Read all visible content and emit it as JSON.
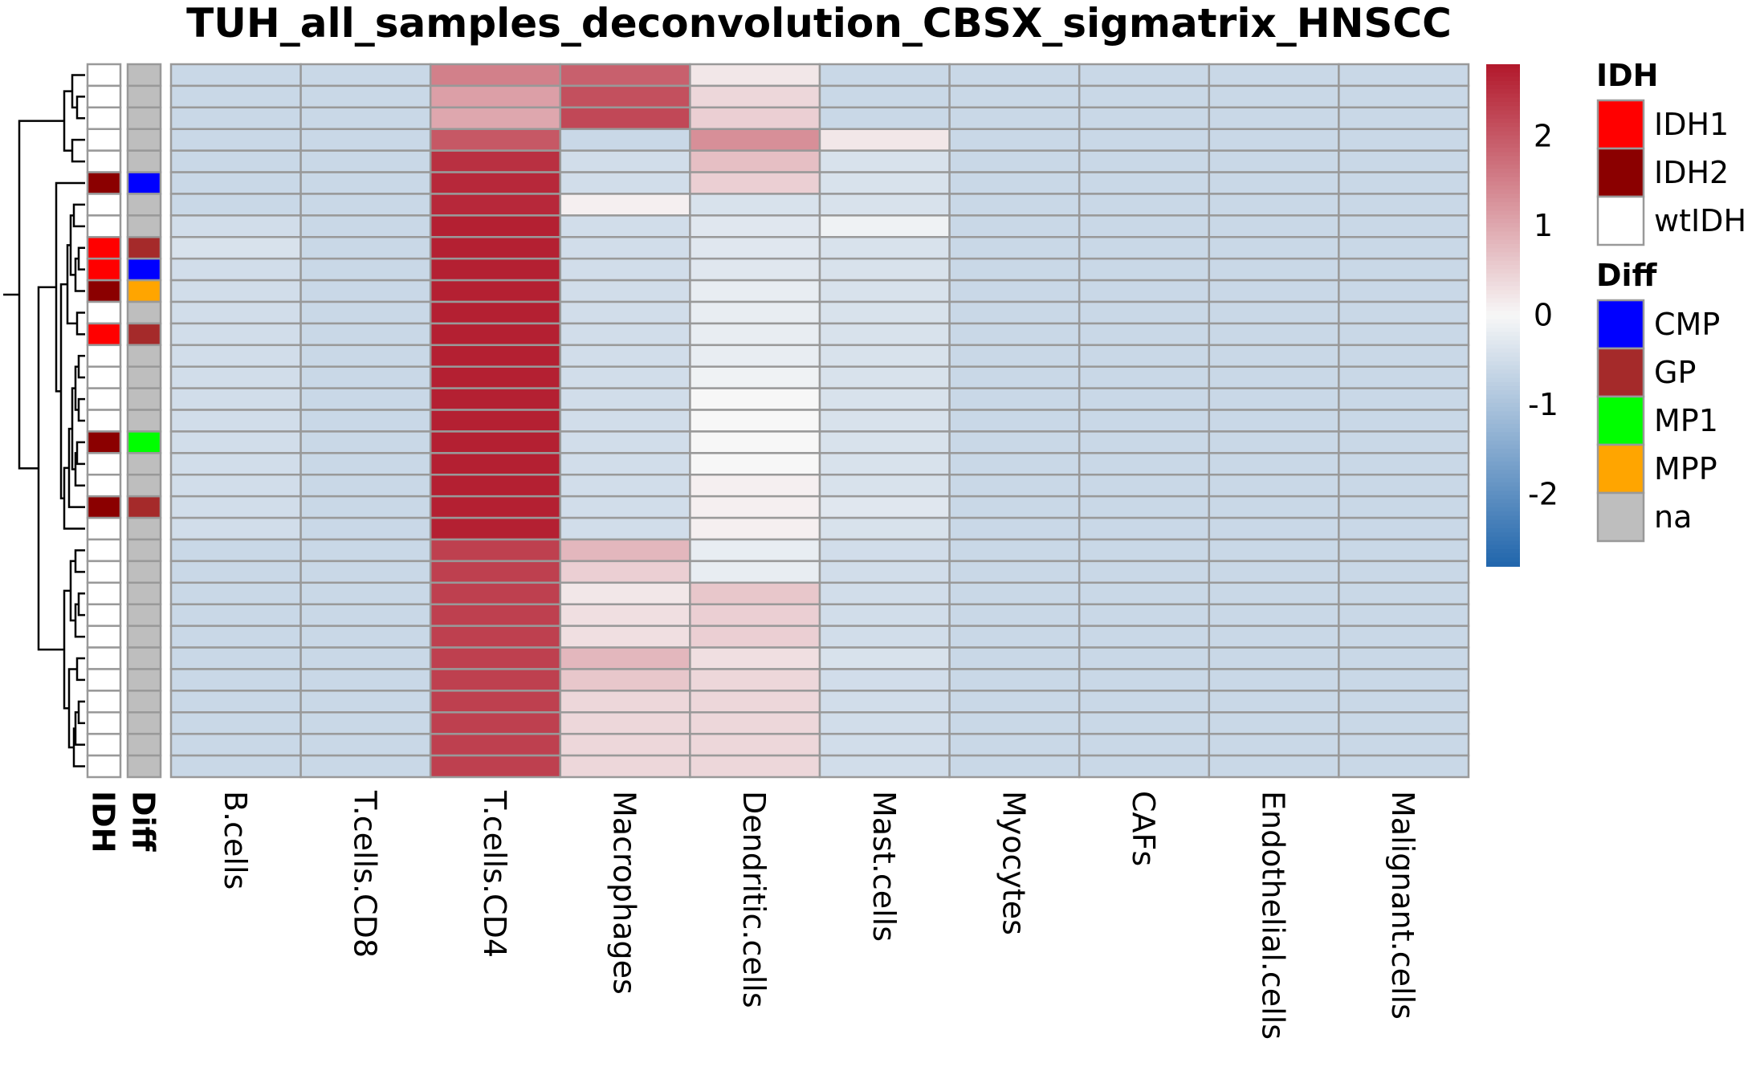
{
  "chart_data": {
    "type": "heatmap",
    "title": "TUH_all_samples_deconvolution_CBSX_sigmatrix_HNSCC",
    "columns": [
      "B.cells",
      "T.cells.CD8",
      "T.cells.CD4",
      "Macrophages",
      "Dendritic.cells",
      "Mast.cells",
      "Myocytes",
      "CAFs",
      "Endothelial.cells",
      "Malignant.cells"
    ],
    "annotation_tracks": [
      "IDH",
      "Diff"
    ],
    "values": [
      [
        -0.6,
        -0.6,
        1.5,
        1.9,
        0.2,
        -0.6,
        -0.6,
        -0.6,
        -0.6,
        -0.6
      ],
      [
        -0.6,
        -0.6,
        1.1,
        2.1,
        0.4,
        -0.6,
        -0.6,
        -0.6,
        -0.6,
        -0.6
      ],
      [
        -0.6,
        -0.6,
        1.0,
        2.2,
        0.5,
        -0.6,
        -0.6,
        -0.6,
        -0.6,
        -0.6
      ],
      [
        -0.6,
        -0.6,
        2.0,
        -0.6,
        1.3,
        0.2,
        -0.6,
        -0.6,
        -0.6,
        -0.6
      ],
      [
        -0.6,
        -0.6,
        2.5,
        -0.5,
        0.7,
        -0.4,
        -0.6,
        -0.6,
        -0.6,
        -0.6
      ],
      [
        -0.6,
        -0.6,
        2.6,
        -0.5,
        0.5,
        -0.4,
        -0.6,
        -0.6,
        -0.6,
        -0.6
      ],
      [
        -0.6,
        -0.6,
        2.6,
        0.1,
        -0.4,
        -0.4,
        -0.6,
        -0.6,
        -0.6,
        -0.6
      ],
      [
        -0.5,
        -0.6,
        2.7,
        -0.5,
        -0.3,
        -0.1,
        -0.6,
        -0.6,
        -0.6,
        -0.6
      ],
      [
        -0.4,
        -0.6,
        2.7,
        -0.5,
        -0.3,
        -0.4,
        -0.6,
        -0.6,
        -0.6,
        -0.6
      ],
      [
        -0.5,
        -0.6,
        2.7,
        -0.5,
        -0.3,
        -0.4,
        -0.6,
        -0.6,
        -0.6,
        -0.6
      ],
      [
        -0.5,
        -0.6,
        2.7,
        -0.5,
        -0.2,
        -0.4,
        -0.6,
        -0.6,
        -0.6,
        -0.6
      ],
      [
        -0.5,
        -0.6,
        2.7,
        -0.5,
        -0.2,
        -0.4,
        -0.6,
        -0.6,
        -0.6,
        -0.6
      ],
      [
        -0.5,
        -0.6,
        2.7,
        -0.5,
        -0.2,
        -0.4,
        -0.6,
        -0.6,
        -0.6,
        -0.6
      ],
      [
        -0.5,
        -0.6,
        2.7,
        -0.5,
        -0.2,
        -0.4,
        -0.6,
        -0.6,
        -0.6,
        -0.6
      ],
      [
        -0.5,
        -0.6,
        2.7,
        -0.5,
        -0.1,
        -0.4,
        -0.6,
        -0.6,
        -0.6,
        -0.6
      ],
      [
        -0.5,
        -0.6,
        2.7,
        -0.5,
        0.0,
        -0.4,
        -0.6,
        -0.6,
        -0.6,
        -0.6
      ],
      [
        -0.5,
        -0.6,
        2.7,
        -0.5,
        0.0,
        -0.4,
        -0.6,
        -0.6,
        -0.6,
        -0.6
      ],
      [
        -0.5,
        -0.6,
        2.7,
        -0.5,
        0.0,
        -0.4,
        -0.6,
        -0.6,
        -0.6,
        -0.6
      ],
      [
        -0.5,
        -0.6,
        2.7,
        -0.5,
        0.0,
        -0.4,
        -0.6,
        -0.6,
        -0.6,
        -0.6
      ],
      [
        -0.5,
        -0.6,
        2.7,
        -0.5,
        0.1,
        -0.4,
        -0.6,
        -0.6,
        -0.6,
        -0.6
      ],
      [
        -0.5,
        -0.6,
        2.7,
        -0.5,
        0.1,
        -0.3,
        -0.6,
        -0.6,
        -0.6,
        -0.6
      ],
      [
        -0.5,
        -0.6,
        2.7,
        -0.5,
        0.1,
        -0.4,
        -0.6,
        -0.6,
        -0.6,
        -0.6
      ],
      [
        -0.6,
        -0.6,
        2.3,
        0.8,
        -0.2,
        -0.5,
        -0.6,
        -0.6,
        -0.6,
        -0.6
      ],
      [
        -0.6,
        -0.6,
        2.3,
        0.5,
        -0.2,
        -0.5,
        -0.6,
        -0.6,
        -0.6,
        -0.6
      ],
      [
        -0.6,
        -0.6,
        2.3,
        0.2,
        0.6,
        -0.5,
        -0.6,
        -0.6,
        -0.6,
        -0.6
      ],
      [
        -0.6,
        -0.6,
        2.3,
        0.3,
        0.5,
        -0.5,
        -0.6,
        -0.6,
        -0.6,
        -0.6
      ],
      [
        -0.6,
        -0.6,
        2.3,
        0.3,
        0.5,
        -0.5,
        -0.6,
        -0.6,
        -0.6,
        -0.6
      ],
      [
        -0.6,
        -0.6,
        2.3,
        0.8,
        0.3,
        -0.4,
        -0.6,
        -0.6,
        -0.6,
        -0.6
      ],
      [
        -0.6,
        -0.6,
        2.3,
        0.6,
        0.4,
        -0.5,
        -0.6,
        -0.6,
        -0.6,
        -0.6
      ],
      [
        -0.6,
        -0.6,
        2.3,
        0.4,
        0.4,
        -0.5,
        -0.6,
        -0.6,
        -0.6,
        -0.6
      ],
      [
        -0.6,
        -0.6,
        2.3,
        0.4,
        0.4,
        -0.5,
        -0.6,
        -0.6,
        -0.6,
        -0.6
      ],
      [
        -0.6,
        -0.6,
        2.3,
        0.4,
        0.4,
        -0.5,
        -0.6,
        -0.6,
        -0.6,
        -0.6
      ],
      [
        -0.6,
        -0.6,
        2.3,
        0.4,
        0.4,
        -0.5,
        -0.6,
        -0.6,
        -0.6,
        -0.6
      ]
    ],
    "row_annotations": {
      "IDH": [
        "wtIDH",
        "wtIDH",
        "wtIDH",
        "wtIDH",
        "wtIDH",
        "IDH2",
        "wtIDH",
        "wtIDH",
        "IDH1",
        "IDH1",
        "IDH2",
        "wtIDH",
        "IDH1",
        "wtIDH",
        "wtIDH",
        "wtIDH",
        "wtIDH",
        "IDH2",
        "wtIDH",
        "wtIDH",
        "IDH2",
        "wtIDH",
        "wtIDH",
        "wtIDH",
        "wtIDH",
        "wtIDH",
        "wtIDH",
        "wtIDH",
        "wtIDH",
        "wtIDH",
        "wtIDH",
        "wtIDH",
        "wtIDH"
      ],
      "Diff": [
        "na",
        "na",
        "na",
        "na",
        "na",
        "CMP",
        "na",
        "na",
        "GP",
        "CMP",
        "MPP",
        "na",
        "GP",
        "na",
        "na",
        "na",
        "na",
        "MP1",
        "na",
        "na",
        "GP",
        "na",
        "na",
        "na",
        "na",
        "na",
        "na",
        "na",
        "na",
        "na",
        "na",
        "na",
        "na"
      ]
    },
    "color_scale": {
      "ticks": [
        2,
        1,
        0,
        -1,
        -2
      ],
      "range": [
        -2.8,
        2.8
      ],
      "low_color": "#2166ac",
      "mid_color": "#f7f7f7",
      "high_color": "#b2182b"
    },
    "legends": {
      "IDH": {
        "title": "IDH",
        "items": [
          {
            "label": "IDH1",
            "color": "#ff0000"
          },
          {
            "label": "IDH2",
            "color": "#8b0000"
          },
          {
            "label": "wtIDH",
            "color": "#ffffff"
          }
        ]
      },
      "Diff": {
        "title": "Diff",
        "items": [
          {
            "label": "CMP",
            "color": "#0000ff"
          },
          {
            "label": "GP",
            "color": "#a52a2a"
          },
          {
            "label": "MP1",
            "color": "#00ff00"
          },
          {
            "label": "MPP",
            "color": "#ffa500"
          },
          {
            "label": "na",
            "color": "#bebebe"
          }
        ]
      }
    },
    "cell_border_color": "#999999",
    "grid": true,
    "row_dendrogram": true
  }
}
